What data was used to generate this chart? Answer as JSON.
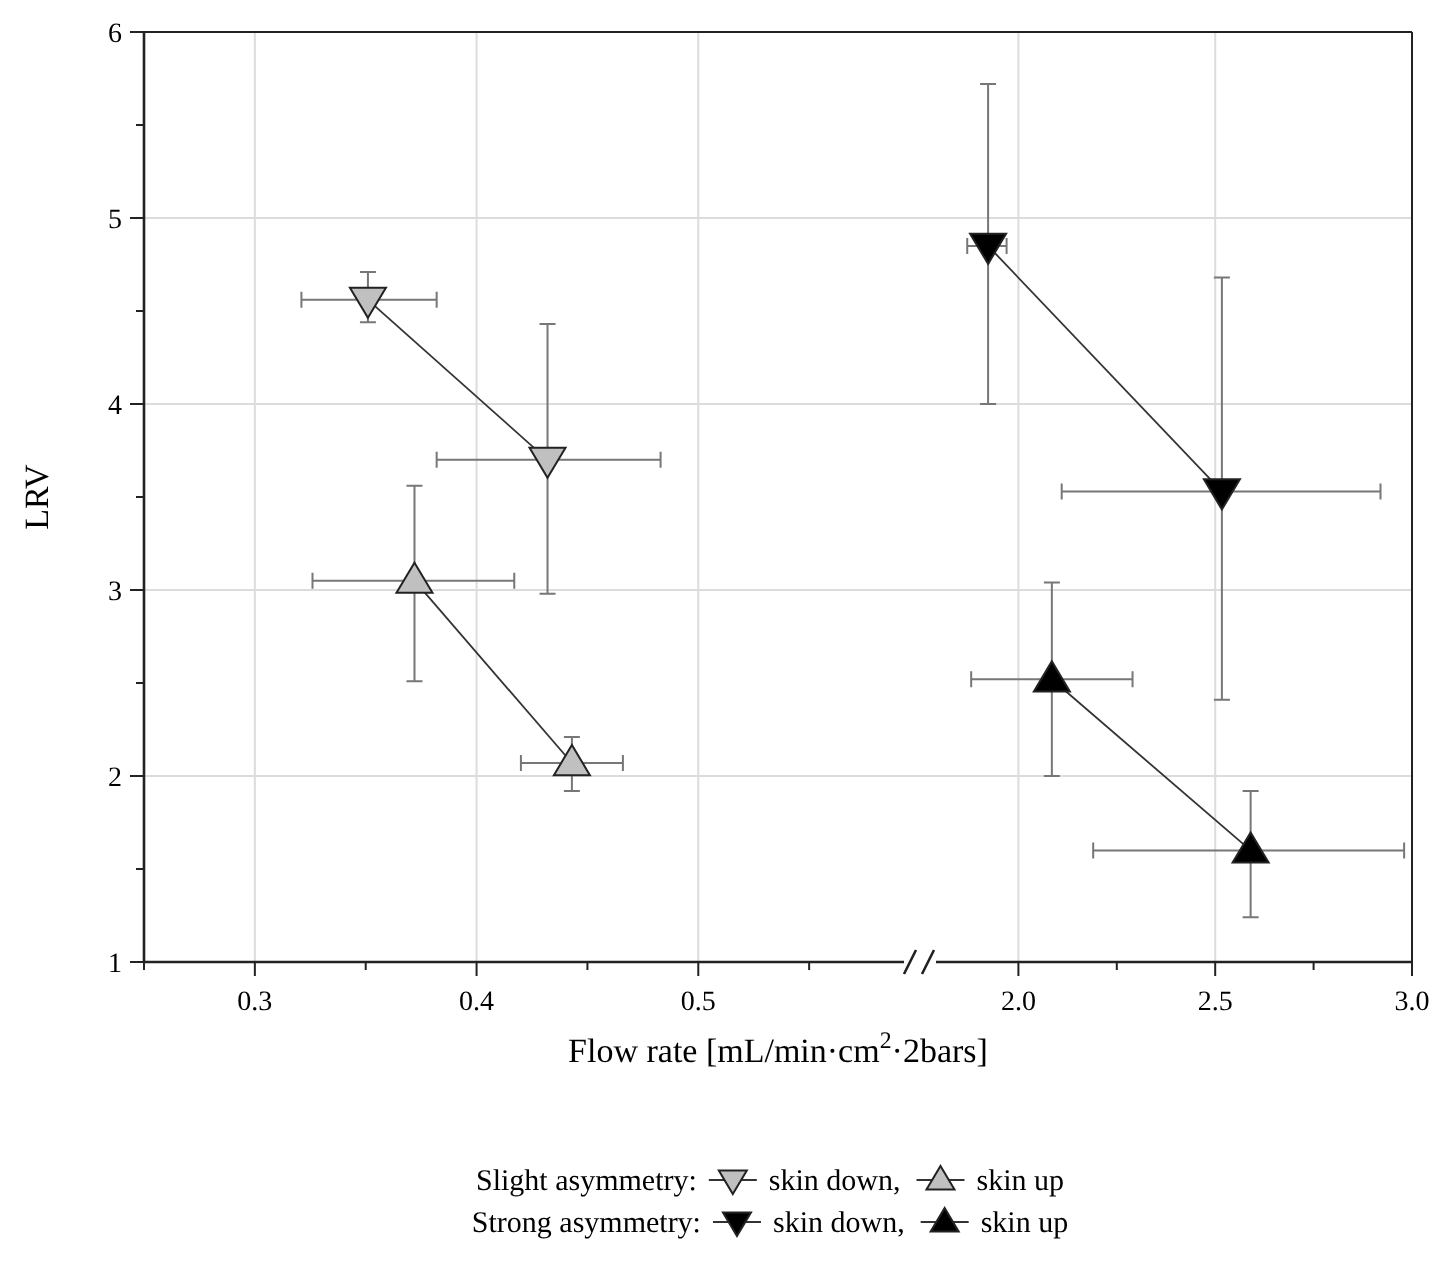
{
  "chart_data": [
    {
      "type": "line",
      "ylabel": "LRV",
      "xlabel": "Flow rate [mL/min·cm$^{2}$·2bars]",
      "legend_title": "Slight asymmetry:",
      "legend": "bottom",
      "grid": true,
      "line_style": "solid",
      "xlim": [
        0.25,
        0.6
      ],
      "xticks": [
        {
          "value": 0.25,
          "label": null
        },
        0.3,
        {
          "value": 0.35,
          "label": null
        },
        0.4,
        {
          "value": 0.45,
          "label": null
        },
        0.5,
        {
          "value": 0.55,
          "label": null
        }
      ],
      "ylim": [
        1,
        6
      ],
      "yticks": [
        1,
        {
          "value": 1.5,
          "label": null
        },
        2,
        {
          "value": 2.5,
          "label": null
        },
        3,
        {
          "value": 3.5,
          "label": null
        },
        4,
        {
          "value": 4.5,
          "label": null
        },
        5,
        {
          "value": 5.5,
          "label": null
        },
        6
      ],
      "series": [
        {
          "name": "skin down,",
          "color": "#c0c0c0",
          "marker": "triangle-down",
          "x": [
            0.351,
            0.432
          ],
          "values": [
            4.56,
            3.7
          ],
          "errors": [
            [
              4.44,
              4.71
            ],
            [
              2.98,
              4.43
            ]
          ],
          "xerrors": [
            [
              0.321,
              0.382
            ],
            [
              0.382,
              0.483
            ]
          ]
        },
        {
          "name": "skin up",
          "color": "#c0c0c0",
          "marker": "triangle",
          "x": [
            0.372,
            0.443
          ],
          "values": [
            3.05,
            2.07
          ],
          "errors": [
            [
              2.51,
              3.56
            ],
            [
              1.92,
              2.21
            ]
          ],
          "xerrors": [
            [
              0.326,
              0.417
            ],
            [
              0.42,
              0.466
            ]
          ]
        }
      ]
    },
    {
      "type": "line",
      "legend_title": "Strong asymmetry:",
      "legend": "bottom",
      "grid": true,
      "tick_labels": "x",
      "line_style": "solid",
      "xlim": [
        1.75,
        3
      ],
      "xticks": [
        {
          "value": 2,
          "label": "2.0"
        },
        {
          "value": 2.25,
          "label": null
        },
        2.5,
        {
          "value": 2.75,
          "label": null
        },
        {
          "value": 3,
          "label": "3.0"
        }
      ],
      "ylim": [
        1,
        6
      ],
      "yticks": [
        1,
        2,
        3,
        4,
        5,
        6
      ],
      "series": [
        {
          "name": "skin down,",
          "color": "#000000",
          "marker": "triangle-down",
          "x": [
            1.923,
            2.517
          ],
          "values": [
            4.85,
            3.53
          ],
          "errors": [
            [
              4.0,
              5.72
            ],
            [
              2.41,
              4.68
            ]
          ],
          "xerrors": [
            [
              1.87,
              1.97
            ],
            [
              2.11,
              2.92
            ]
          ]
        },
        {
          "name": "skin up",
          "color": "#000000",
          "marker": "triangle",
          "x": [
            2.085,
            2.59
          ],
          "values": [
            2.52,
            1.6
          ],
          "errors": [
            [
              2.0,
              3.04
            ],
            [
              1.24,
              1.92
            ]
          ],
          "xerrors": [
            [
              1.88,
              2.29
            ],
            [
              2.19,
              2.98
            ]
          ]
        }
      ]
    }
  ]
}
